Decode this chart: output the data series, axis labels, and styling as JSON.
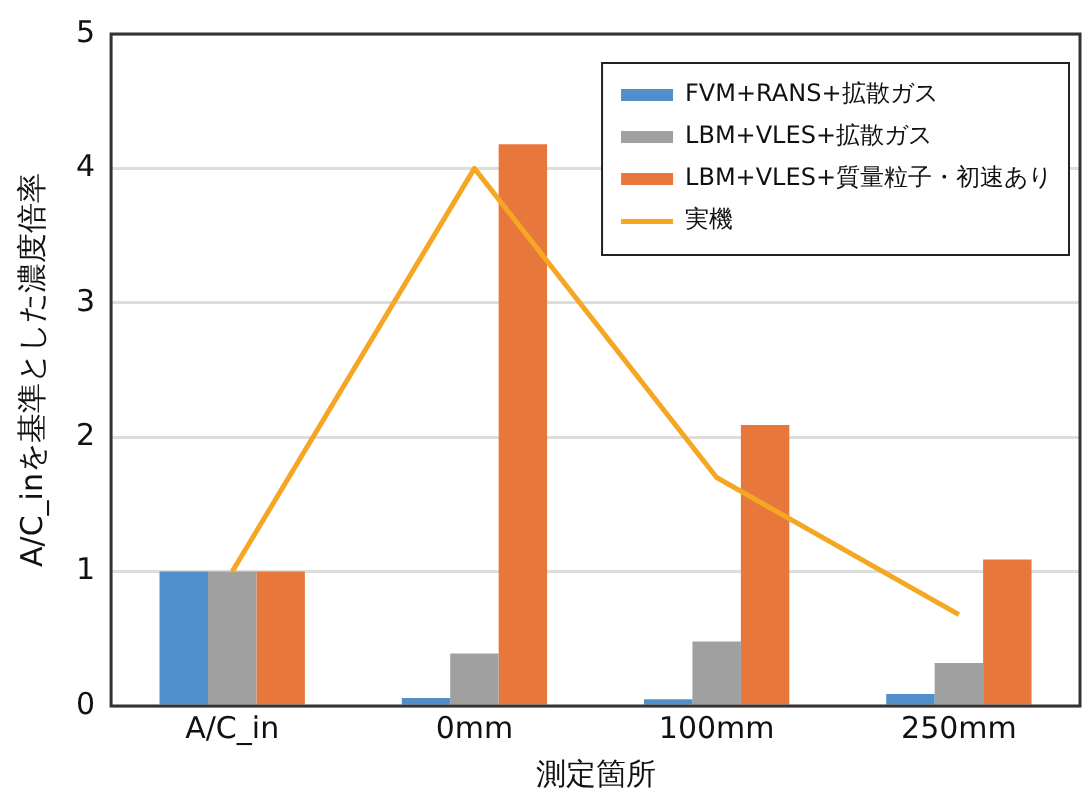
{
  "chart_data": {
    "type": "bar",
    "xlabel": "測定箇所",
    "ylabel": "A/C_inを基準とした濃度倍率",
    "categories": [
      "A/C_in",
      "0mm",
      "100mm",
      "250mm"
    ],
    "series": [
      {
        "name": "FVM+RANS+拡散ガス",
        "color": "#4f8fcb",
        "values": [
          1.0,
          0.06,
          0.05,
          0.09
        ]
      },
      {
        "name": "LBM+VLES+拡散ガス",
        "color": "#a0a0a0",
        "values": [
          1.0,
          0.39,
          0.48,
          0.32
        ]
      },
      {
        "name": "LBM+VLES+質量粒子・初速あり",
        "color": "#e8773c",
        "values": [
          1.0,
          4.18,
          2.09,
          1.09
        ]
      },
      {
        "name": "実機",
        "type": "line",
        "color": "#f5a623",
        "values": [
          1.0,
          4.0,
          1.7,
          0.68
        ]
      }
    ],
    "ylim": [
      0,
      5
    ],
    "yticks": [
      0,
      1,
      2,
      3,
      4,
      5
    ],
    "grid": "y",
    "legend": "top right",
    "marker": "none"
  }
}
